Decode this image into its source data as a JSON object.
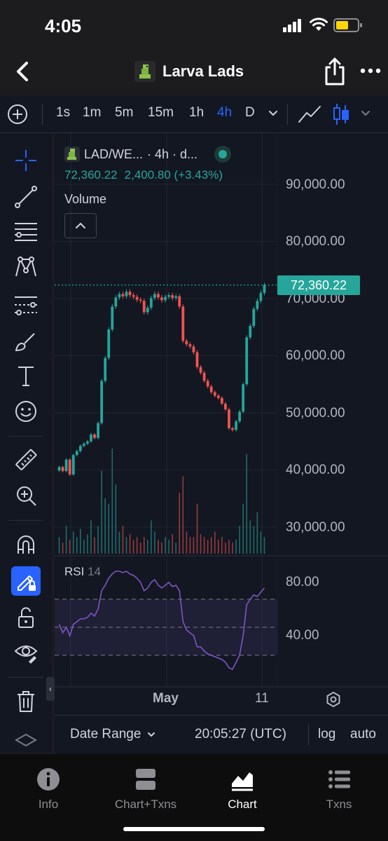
{
  "status_bar": {
    "time": "4:05"
  },
  "nav": {
    "title": "Larva Lads"
  },
  "toolbar": {
    "intervals": [
      {
        "label": "1s",
        "active": false
      },
      {
        "label": "1m",
        "active": false
      },
      {
        "label": "5m",
        "active": false
      },
      {
        "label": "15m",
        "active": false
      },
      {
        "label": "1h",
        "active": false
      },
      {
        "label": "4h",
        "active": true
      },
      {
        "label": "D",
        "active": false
      }
    ]
  },
  "legend": {
    "symbol": "LAD/WE...",
    "interval_text": "· 4h · d...",
    "last_price": "72,360.22",
    "change": "2,400.80 (+3.43%)",
    "volume_label": "Volume"
  },
  "price_axis": {
    "ticks": [
      "90,000.00",
      "80,000.00",
      "70,000.00",
      "60,000.00",
      "50,000.00",
      "40,000.00",
      "30,000.00"
    ],
    "current_price_label": "72,360.22"
  },
  "rsi": {
    "label": "RSI",
    "period": "14",
    "ticks": [
      "80.00",
      "40.00"
    ]
  },
  "x_axis": {
    "labels": [
      "May",
      "11"
    ]
  },
  "range_bar": {
    "date_range_label": "Date Range",
    "time": "20:05:27 (UTC)",
    "log_label": "log",
    "auto_label": "auto"
  },
  "tabs": [
    {
      "label": "Info",
      "icon": "info-icon",
      "active": false
    },
    {
      "label": "Chart+Txns",
      "icon": "split-view-icon",
      "active": false
    },
    {
      "label": "Chart",
      "icon": "chart-icon",
      "active": true
    },
    {
      "label": "Txns",
      "icon": "list-icon",
      "active": false
    }
  ],
  "colors": {
    "up": "#26a69a",
    "down": "#ef5350",
    "accent": "#2962ff",
    "rsi_line": "#7e57c2",
    "background": "#131722"
  },
  "chart_data": {
    "type": "candlestick",
    "symbol": "LAD/WETH",
    "interval": "4h",
    "price_ylim": [
      25000,
      95000
    ],
    "rsi_ylim": [
      10,
      100
    ],
    "rsi_levels": [
      70,
      50,
      30
    ],
    "x_labels": [
      "May",
      "11"
    ],
    "close": [
      40500,
      39800,
      41800,
      39200,
      42600,
      43300,
      44200,
      44600,
      45000,
      46200,
      45600,
      48200,
      55600,
      59600,
      64600,
      68600,
      70200,
      70800,
      70400,
      71200,
      70600,
      70300,
      69800,
      69600,
      67600,
      68400,
      70100,
      70800,
      70200,
      69700,
      70300,
      70600,
      70100,
      70400,
      68600,
      62600,
      62000,
      61600,
      60600,
      58000,
      57000,
      55600,
      54600,
      53600,
      53000,
      52600,
      51600,
      50600,
      47300,
      47000,
      48500,
      50200,
      55000,
      63200,
      65200,
      68200,
      69600,
      71000,
      72360
    ],
    "volume": [
      0.06,
      0.04,
      0.1,
      0.05,
      0.08,
      0.06,
      0.09,
      0.05,
      0.07,
      0.12,
      0.06,
      0.1,
      0.3,
      0.2,
      0.18,
      0.38,
      0.25,
      0.08,
      0.1,
      0.06,
      0.07,
      0.05,
      0.06,
      0.04,
      0.06,
      0.05,
      0.12,
      0.08,
      0.05,
      0.04,
      0.06,
      0.05,
      0.07,
      0.04,
      0.22,
      0.28,
      0.08,
      0.06,
      0.06,
      0.18,
      0.07,
      0.06,
      0.05,
      0.06,
      0.08,
      0.05,
      0.06,
      0.04,
      0.05,
      0.04,
      0.05,
      0.1,
      0.18,
      0.36,
      0.12,
      0.1,
      0.15,
      0.08,
      0.06
    ],
    "rsi": [
      52,
      46,
      50,
      44,
      52,
      54,
      56,
      56,
      57,
      60,
      58,
      63,
      76,
      80,
      85,
      88,
      90,
      90,
      89,
      90,
      88,
      87,
      85,
      82,
      76,
      78,
      82,
      84,
      80,
      78,
      80,
      82,
      79,
      80,
      76,
      54,
      48,
      46,
      44,
      36,
      36,
      33,
      31,
      30,
      29,
      28,
      27,
      25,
      21,
      20,
      25,
      30,
      44,
      66,
      70,
      73,
      72,
      75,
      78
    ]
  }
}
